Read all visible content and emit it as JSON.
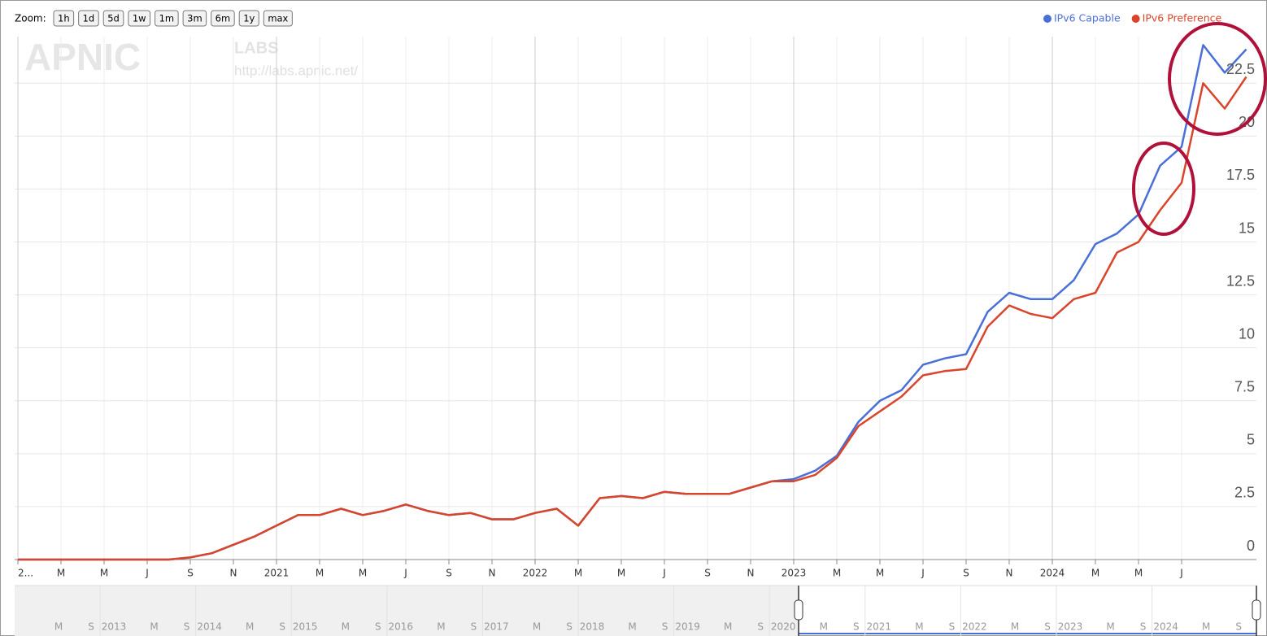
{
  "chart_data": {
    "type": "line",
    "x": [
      "2020-01",
      "2020-02",
      "2020-03",
      "2020-04",
      "2020-05",
      "2020-06",
      "2020-07",
      "2020-08",
      "2020-09",
      "2020-10",
      "2020-11",
      "2020-12",
      "2021-01",
      "2021-02",
      "2021-03",
      "2021-04",
      "2021-05",
      "2021-06",
      "2021-07",
      "2021-08",
      "2021-09",
      "2021-10",
      "2021-11",
      "2021-12",
      "2022-01",
      "2022-02",
      "2022-03",
      "2022-04",
      "2022-05",
      "2022-06",
      "2022-07",
      "2022-08",
      "2022-09",
      "2022-10",
      "2022-11",
      "2022-12",
      "2023-01",
      "2023-02",
      "2023-03",
      "2023-04",
      "2023-05",
      "2023-06",
      "2023-07",
      "2023-08",
      "2023-09",
      "2023-10",
      "2023-11",
      "2023-12",
      "2024-01",
      "2024-02",
      "2024-03",
      "2024-04",
      "2024-05",
      "2024-06",
      "2024-07",
      "2024-08",
      "2024-09",
      "2024-10"
    ],
    "series": [
      {
        "name": "IPv6 Capable",
        "color": "#4a6fd6",
        "values": [
          0,
          0,
          0,
          0,
          0,
          0,
          0,
          0,
          0.1,
          0.3,
          0.7,
          1.1,
          1.6,
          2.1,
          2.1,
          2.4,
          2.1,
          2.3,
          2.6,
          2.3,
          2.1,
          2.2,
          1.9,
          1.9,
          2.2,
          2.4,
          1.6,
          2.9,
          3.0,
          2.9,
          3.2,
          3.1,
          3.1,
          3.1,
          3.4,
          3.7,
          3.8,
          4.2,
          4.9,
          6.5,
          7.5,
          8.0,
          9.2,
          9.5,
          9.7,
          11.7,
          12.6,
          12.3,
          12.3,
          13.2,
          14.9,
          15.4,
          16.3,
          18.6,
          19.5,
          24.3,
          23.0,
          24.1
        ]
      },
      {
        "name": "IPv6 Preference",
        "color": "#d9452a",
        "values": [
          0,
          0,
          0,
          0,
          0,
          0,
          0,
          0,
          0.1,
          0.3,
          0.7,
          1.1,
          1.6,
          2.1,
          2.1,
          2.4,
          2.1,
          2.3,
          2.6,
          2.3,
          2.1,
          2.2,
          1.9,
          1.9,
          2.2,
          2.4,
          1.6,
          2.9,
          3.0,
          2.9,
          3.2,
          3.1,
          3.1,
          3.1,
          3.4,
          3.7,
          3.7,
          4.0,
          4.8,
          6.3,
          7.0,
          7.7,
          8.7,
          8.9,
          9.0,
          11.0,
          12.0,
          11.6,
          11.4,
          12.3,
          12.6,
          14.5,
          15.0,
          16.5,
          17.8,
          22.5,
          21.3,
          22.8
        ]
      }
    ],
    "ylim": [
      0,
      24.7
    ],
    "yticks": [
      0,
      2.5,
      5,
      7.5,
      10,
      12.5,
      15,
      17.5,
      20,
      22.5
    ],
    "xticks": [
      {
        "value": "2020-01",
        "label": "2..."
      },
      {
        "value": "2020-03",
        "label": "M"
      },
      {
        "value": "2020-05",
        "label": "M"
      },
      {
        "value": "2020-07",
        "label": "J"
      },
      {
        "value": "2020-09",
        "label": "S"
      },
      {
        "value": "2020-11",
        "label": "N"
      },
      {
        "value": "2021-01",
        "label": "2021"
      },
      {
        "value": "2021-03",
        "label": "M"
      },
      {
        "value": "2021-05",
        "label": "M"
      },
      {
        "value": "2021-07",
        "label": "J"
      },
      {
        "value": "2021-09",
        "label": "S"
      },
      {
        "value": "2021-11",
        "label": "N"
      },
      {
        "value": "2022-01",
        "label": "2022"
      },
      {
        "value": "2022-03",
        "label": "M"
      },
      {
        "value": "2022-05",
        "label": "M"
      },
      {
        "value": "2022-07",
        "label": "J"
      },
      {
        "value": "2022-09",
        "label": "S"
      },
      {
        "value": "2022-11",
        "label": "N"
      },
      {
        "value": "2023-01",
        "label": "2023"
      },
      {
        "value": "2023-03",
        "label": "M"
      },
      {
        "value": "2023-05",
        "label": "M"
      },
      {
        "value": "2023-07",
        "label": "J"
      },
      {
        "value": "2023-09",
        "label": "S"
      },
      {
        "value": "2023-11",
        "label": "N"
      },
      {
        "value": "2024-01",
        "label": "2024"
      },
      {
        "value": "2024-03",
        "label": "M"
      },
      {
        "value": "2024-05",
        "label": "M"
      },
      {
        "value": "2024-07",
        "label": "J"
      }
    ],
    "grid": true,
    "legend": "top-right"
  },
  "zoom": {
    "label": "Zoom:",
    "buttons": [
      "1h",
      "1d",
      "5d",
      "1w",
      "1m",
      "3m",
      "6m",
      "1y",
      "max"
    ]
  },
  "watermark": {
    "logo": "APNIC",
    "labs": "LABS",
    "url": "http://labs.apnic.net/"
  },
  "navigator": {
    "labels": [
      "M",
      "S",
      "2013",
      "M",
      "S",
      "2014",
      "M",
      "S",
      "2015",
      "M",
      "S",
      "2016",
      "M",
      "S",
      "2017",
      "M",
      "S",
      "2018",
      "M",
      "S",
      "2019",
      "M",
      "S",
      "2020",
      "M",
      "S",
      "2021",
      "M",
      "S",
      "2022",
      "M",
      "S",
      "2023",
      "M",
      "S",
      "2024",
      "M",
      "S"
    ]
  }
}
